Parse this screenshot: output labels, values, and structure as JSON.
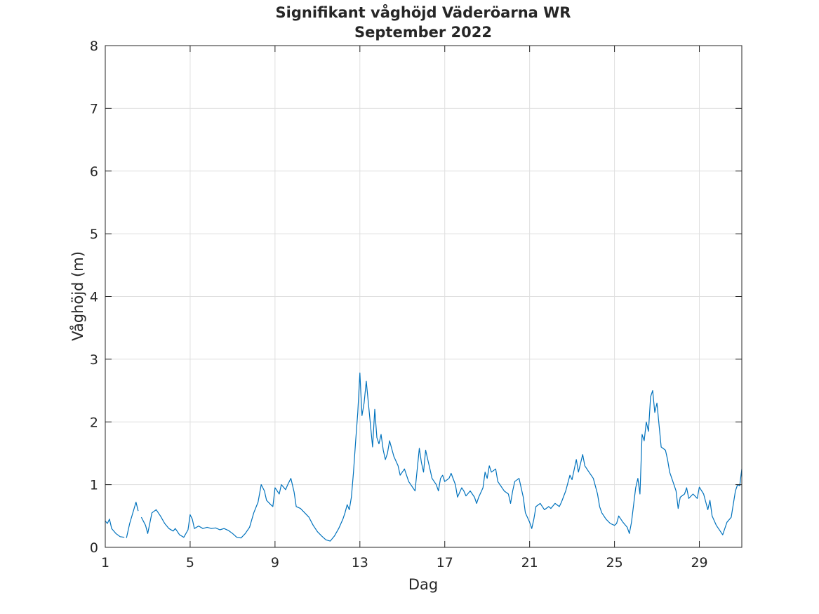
{
  "chart_data": {
    "type": "line",
    "title": "Signifikant våghöjd Väderöarna WR",
    "subtitle": "September 2022",
    "xlabel": "Dag",
    "ylabel": "Våghöjd (m)",
    "xlim": [
      1,
      31
    ],
    "ylim": [
      0,
      8
    ],
    "x_ticks": [
      "1",
      "5",
      "9",
      "13",
      "17",
      "21",
      "25",
      "29"
    ],
    "y_ticks": [
      "0",
      "1",
      "2",
      "3",
      "4",
      "5",
      "6",
      "7",
      "8"
    ],
    "grid": true,
    "line_color": "#0072bd",
    "series": [
      {
        "values": [
          [
            1.0,
            0.42
          ],
          [
            1.1,
            0.38
          ],
          [
            1.2,
            0.45
          ],
          [
            1.3,
            0.3
          ],
          [
            1.5,
            0.22
          ],
          [
            1.7,
            0.17
          ],
          [
            1.9,
            0.16
          ],
          null,
          [
            2.0,
            0.15
          ],
          [
            2.15,
            0.38
          ],
          [
            2.3,
            0.55
          ],
          [
            2.45,
            0.72
          ],
          [
            2.55,
            0.58
          ],
          null,
          [
            2.7,
            0.48
          ],
          [
            2.9,
            0.35
          ],
          [
            3.0,
            0.22
          ],
          [
            3.2,
            0.55
          ],
          [
            3.4,
            0.6
          ],
          [
            3.6,
            0.5
          ],
          [
            3.8,
            0.38
          ],
          [
            4.0,
            0.3
          ],
          [
            4.2,
            0.26
          ],
          [
            4.3,
            0.3
          ],
          [
            4.5,
            0.2
          ],
          [
            4.7,
            0.16
          ],
          [
            4.9,
            0.28
          ],
          [
            5.0,
            0.52
          ],
          [
            5.1,
            0.45
          ],
          [
            5.2,
            0.3
          ],
          [
            5.4,
            0.34
          ],
          [
            5.6,
            0.3
          ],
          [
            5.8,
            0.32
          ],
          [
            6.0,
            0.3
          ],
          [
            6.2,
            0.31
          ],
          [
            6.4,
            0.28
          ],
          [
            6.6,
            0.3
          ],
          [
            6.8,
            0.27
          ],
          [
            7.0,
            0.22
          ],
          [
            7.2,
            0.16
          ],
          [
            7.4,
            0.15
          ],
          [
            7.6,
            0.22
          ],
          [
            7.8,
            0.32
          ],
          [
            8.0,
            0.55
          ],
          [
            8.2,
            0.72
          ],
          [
            8.35,
            1.0
          ],
          [
            8.5,
            0.9
          ],
          [
            8.6,
            0.75
          ],
          [
            8.8,
            0.68
          ],
          [
            8.9,
            0.65
          ],
          [
            9.0,
            0.95
          ],
          [
            9.2,
            0.85
          ],
          [
            9.3,
            1.0
          ],
          [
            9.5,
            0.92
          ],
          [
            9.6,
            1.0
          ],
          [
            9.75,
            1.1
          ],
          [
            9.9,
            0.88
          ],
          [
            10.0,
            0.65
          ],
          [
            10.2,
            0.62
          ],
          [
            10.4,
            0.55
          ],
          [
            10.6,
            0.48
          ],
          [
            10.8,
            0.35
          ],
          [
            11.0,
            0.25
          ],
          [
            11.2,
            0.18
          ],
          [
            11.4,
            0.12
          ],
          [
            11.6,
            0.1
          ],
          [
            11.8,
            0.18
          ],
          [
            12.0,
            0.3
          ],
          [
            12.2,
            0.45
          ],
          [
            12.3,
            0.55
          ],
          [
            12.4,
            0.68
          ],
          [
            12.5,
            0.6
          ],
          [
            12.6,
            0.8
          ],
          [
            12.7,
            1.2
          ],
          [
            12.8,
            1.7
          ],
          [
            12.9,
            2.15
          ],
          [
            13.0,
            2.78
          ],
          [
            13.1,
            2.1
          ],
          [
            13.2,
            2.3
          ],
          [
            13.3,
            2.65
          ],
          [
            13.4,
            2.3
          ],
          [
            13.5,
            1.95
          ],
          [
            13.6,
            1.6
          ],
          [
            13.7,
            2.2
          ],
          [
            13.8,
            1.75
          ],
          [
            13.9,
            1.65
          ],
          [
            14.0,
            1.8
          ],
          [
            14.1,
            1.55
          ],
          [
            14.2,
            1.4
          ],
          [
            14.3,
            1.5
          ],
          [
            14.4,
            1.7
          ],
          [
            14.6,
            1.45
          ],
          [
            14.8,
            1.3
          ],
          [
            14.9,
            1.15
          ],
          [
            15.1,
            1.25
          ],
          [
            15.3,
            1.05
          ],
          [
            15.5,
            0.95
          ],
          [
            15.6,
            0.9
          ],
          [
            15.8,
            1.58
          ],
          [
            15.9,
            1.35
          ],
          [
            16.0,
            1.2
          ],
          [
            16.1,
            1.55
          ],
          [
            16.2,
            1.4
          ],
          [
            16.3,
            1.25
          ],
          [
            16.4,
            1.1
          ],
          [
            16.6,
            1.0
          ],
          [
            16.7,
            0.9
          ],
          [
            16.8,
            1.1
          ],
          [
            16.9,
            1.15
          ],
          [
            17.0,
            1.05
          ],
          [
            17.2,
            1.1
          ],
          [
            17.3,
            1.18
          ],
          [
            17.5,
            1.0
          ],
          [
            17.6,
            0.8
          ],
          [
            17.8,
            0.95
          ],
          [
            17.9,
            0.9
          ],
          [
            18.0,
            0.82
          ],
          [
            18.2,
            0.9
          ],
          [
            18.4,
            0.8
          ],
          [
            18.5,
            0.7
          ],
          [
            18.6,
            0.8
          ],
          [
            18.8,
            0.95
          ],
          [
            18.9,
            1.2
          ],
          [
            19.0,
            1.1
          ],
          [
            19.1,
            1.3
          ],
          [
            19.2,
            1.2
          ],
          [
            19.4,
            1.25
          ],
          [
            19.5,
            1.05
          ],
          [
            19.6,
            1.0
          ],
          [
            19.8,
            0.9
          ],
          [
            20.0,
            0.85
          ],
          [
            20.1,
            0.7
          ],
          [
            20.2,
            0.9
          ],
          [
            20.3,
            1.05
          ],
          [
            20.5,
            1.1
          ],
          [
            20.6,
            0.95
          ],
          [
            20.7,
            0.8
          ],
          [
            20.8,
            0.55
          ],
          [
            21.0,
            0.4
          ],
          [
            21.1,
            0.3
          ],
          [
            21.2,
            0.45
          ],
          [
            21.3,
            0.65
          ],
          [
            21.5,
            0.7
          ],
          [
            21.7,
            0.6
          ],
          [
            21.9,
            0.65
          ],
          [
            22.0,
            0.62
          ],
          [
            22.2,
            0.7
          ],
          [
            22.4,
            0.65
          ],
          [
            22.5,
            0.72
          ],
          [
            22.7,
            0.9
          ],
          [
            22.9,
            1.15
          ],
          [
            23.0,
            1.08
          ],
          [
            23.2,
            1.4
          ],
          [
            23.3,
            1.2
          ],
          [
            23.5,
            1.48
          ],
          [
            23.6,
            1.3
          ],
          [
            23.8,
            1.2
          ],
          [
            24.0,
            1.1
          ],
          [
            24.2,
            0.85
          ],
          [
            24.3,
            0.65
          ],
          [
            24.4,
            0.55
          ],
          [
            24.6,
            0.45
          ],
          [
            24.8,
            0.38
          ],
          [
            25.0,
            0.35
          ],
          [
            25.1,
            0.38
          ],
          [
            25.2,
            0.5
          ],
          [
            25.4,
            0.4
          ],
          [
            25.6,
            0.32
          ],
          [
            25.7,
            0.22
          ],
          [
            25.8,
            0.4
          ],
          [
            26.0,
            0.95
          ],
          [
            26.1,
            1.1
          ],
          [
            26.2,
            0.85
          ],
          [
            26.3,
            1.8
          ],
          [
            26.4,
            1.7
          ],
          [
            26.5,
            2.0
          ],
          [
            26.6,
            1.85
          ],
          [
            26.7,
            2.4
          ],
          [
            26.8,
            2.5
          ],
          [
            26.9,
            2.15
          ],
          [
            27.0,
            2.3
          ],
          [
            27.1,
            1.95
          ],
          [
            27.2,
            1.6
          ],
          [
            27.4,
            1.55
          ],
          [
            27.5,
            1.4
          ],
          [
            27.6,
            1.2
          ],
          [
            27.8,
            1.0
          ],
          [
            27.9,
            0.9
          ],
          [
            28.0,
            0.62
          ],
          [
            28.1,
            0.8
          ],
          [
            28.3,
            0.85
          ],
          [
            28.4,
            0.95
          ],
          [
            28.5,
            0.78
          ],
          [
            28.7,
            0.85
          ],
          [
            28.9,
            0.78
          ],
          [
            29.0,
            0.96
          ],
          [
            29.2,
            0.85
          ],
          [
            29.4,
            0.6
          ],
          [
            29.5,
            0.75
          ],
          [
            29.6,
            0.5
          ],
          [
            29.8,
            0.35
          ],
          [
            30.0,
            0.25
          ],
          [
            30.1,
            0.2
          ],
          [
            30.3,
            0.4
          ],
          [
            30.5,
            0.48
          ],
          [
            30.7,
            0.9
          ],
          [
            30.8,
            1.0
          ],
          [
            30.9,
            0.98
          ],
          [
            31.0,
            1.25
          ]
        ]
      }
    ]
  }
}
